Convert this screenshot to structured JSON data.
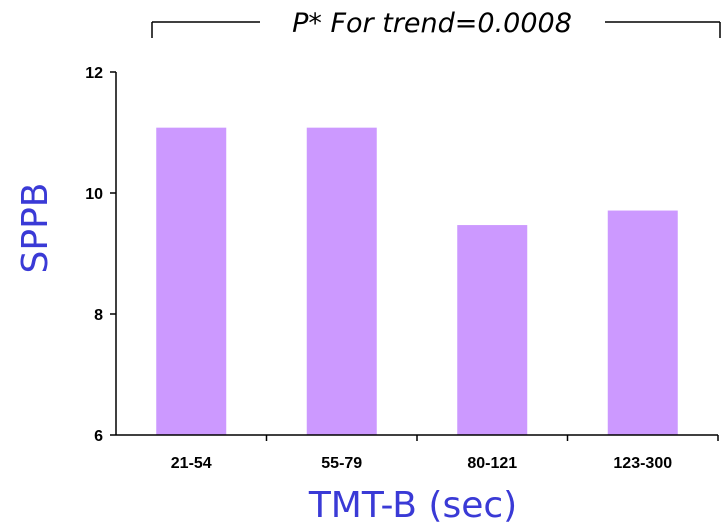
{
  "chart_data": {
    "type": "bar",
    "categories": [
      "21-54",
      "55-79",
      "80-121",
      "123-300"
    ],
    "values": [
      11.08,
      11.08,
      9.47,
      9.71
    ],
    "title": "",
    "xlabel": "TMT-B (sec)",
    "ylabel": "SPPB",
    "ylim": [
      6,
      12
    ],
    "yticks": [
      "6",
      "8",
      "10",
      "12"
    ],
    "grid": false,
    "legend": "none",
    "bar_color": "#cc99ff",
    "axis_label_color": "#3a3ad6",
    "annotation": "P* For  trend=0.0008"
  }
}
